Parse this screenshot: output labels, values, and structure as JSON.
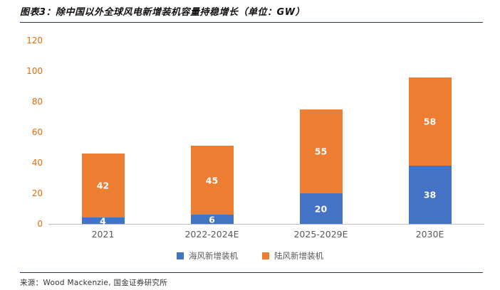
{
  "header": {
    "title": "图表3：除中国以外全球风电新增装机容量持稳增长（单位：GW）"
  },
  "footer": {
    "source": "来源：Wood Mackenzie, 国金证券研究所"
  },
  "colors": {
    "offshore_blue": "#4472C4",
    "onshore_orange": "#ED7D31",
    "y_tick_label": "#E36C09",
    "rule_navy": "#1F3864",
    "axis_line_gray": "#BFBFBF"
  },
  "chart_data": {
    "type": "bar",
    "stacked": true,
    "title": "除中国以外全球风电新增装机容量持稳增长",
    "unit": "GW",
    "categories": [
      "2021",
      "2022-2024E",
      "2025-2029E",
      "2030E"
    ],
    "series": [
      {
        "name": "海风新增装机",
        "color": "#4472C4",
        "values": [
          4,
          6,
          20,
          38
        ]
      },
      {
        "name": "陆风新增装机",
        "color": "#ED7D31",
        "values": [
          42,
          45,
          55,
          58
        ]
      }
    ],
    "totals": [
      46,
      51,
      75,
      96
    ],
    "ylim": [
      0,
      120
    ],
    "yticks": [
      0,
      20,
      40,
      60,
      80,
      100,
      120
    ],
    "grid": false,
    "legend_position": "bottom",
    "value_labels": "inside-white"
  }
}
